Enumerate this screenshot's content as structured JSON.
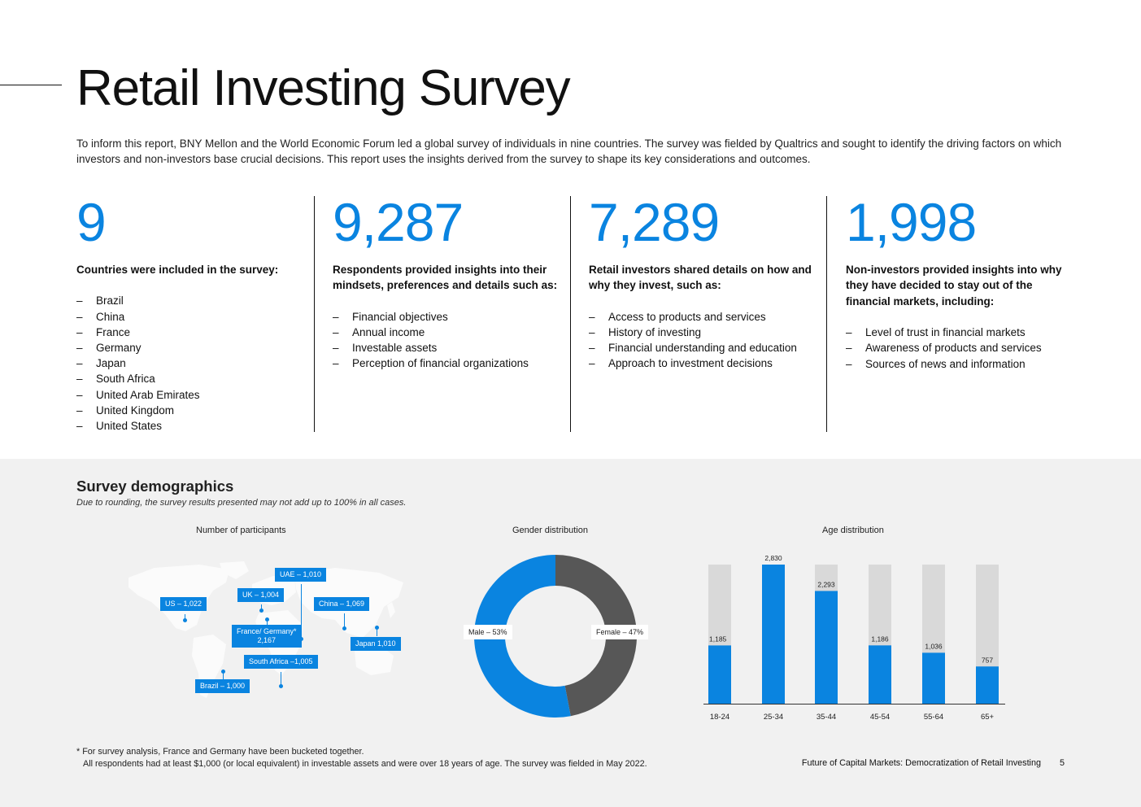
{
  "page": {
    "title": "Retail Investing Survey",
    "intro": "To inform this report, BNY Mellon and the World Economic Forum led a global survey of individuals in nine countries. The survey was fielded by Qualtrics and sought to identify the driving factors on which investors and non-investors base crucial decisions. This report uses the insights derived from the survey to shape its key considerations and outcomes."
  },
  "stats": [
    {
      "number": "9",
      "heading": "Countries were included in the survey:",
      "items": [
        "Brazil",
        "China",
        "France",
        "Germany",
        "Japan",
        "South Africa",
        "United Arab Emirates",
        "United Kingdom",
        "United States"
      ]
    },
    {
      "number": "9,287",
      "heading": "Respondents provided insights into their mindsets, preferences and details such as:",
      "items": [
        "Financial objectives",
        "Annual income",
        "Investable assets",
        "Perception of financial organizations"
      ]
    },
    {
      "number": "7,289",
      "heading": "Retail investors shared details on how and why they invest, such as:",
      "items": [
        "Access to products and services",
        "History of investing",
        "Financial understanding and education",
        "Approach to investment decisions"
      ]
    },
    {
      "number": "1,998",
      "heading": "Non-investors provided insights into why they have decided to stay out of the financial markets, including:",
      "items": [
        "Level of trust in financial markets",
        "Awareness of products and services",
        "Sources of news and information"
      ]
    }
  ],
  "demographics": {
    "title": "Survey demographics",
    "note": "Due to rounding, the survey results presented may not add up to 100% in all cases.",
    "participants_title": "Number of participants",
    "gender_title": "Gender distribution",
    "age_title": "Age distribution",
    "map_labels": {
      "us": "US – 1,022",
      "uk": "UK – 1,004",
      "uae": "UAE – 1,010",
      "china": "China – 1,069",
      "france_germany": "France/ Germany*",
      "france_germany_value": "2,167",
      "japan": "Japan 1,010",
      "south_africa": "South Africa –1,005",
      "brazil": "Brazil – 1,000"
    }
  },
  "chart_data": [
    {
      "type": "pie",
      "title": "Gender distribution",
      "categories": [
        "Male",
        "Female"
      ],
      "values": [
        53,
        47
      ],
      "labels": [
        "Male – 53%",
        "Female – 47%"
      ],
      "colors": [
        "#0a84e0",
        "#575757"
      ]
    },
    {
      "type": "bar",
      "title": "Age distribution",
      "categories": [
        "18-24",
        "25-34",
        "35-44",
        "45-54",
        "55-64",
        "65+"
      ],
      "values": [
        1185,
        2830,
        2293,
        1186,
        1036,
        757
      ],
      "value_labels": [
        "1,185",
        "2,830",
        "2,293",
        "1,186",
        "1,036",
        "757"
      ],
      "ylim": [
        0,
        2830
      ],
      "bar_color": "#0a84e0",
      "track_color": "#d9d9d9"
    }
  ],
  "footnote": {
    "line1": "* For survey analysis, France and Germany have been bucketed together.",
    "line2": "All respondents had at least $1,000 (or local equivalent) in investable assets and were over 18 years of age. The survey was fielded in May 2022."
  },
  "footer": {
    "series": "Future of Capital Markets:",
    "subtitle": "Democratization of Retail Investing",
    "page_number": "5"
  }
}
